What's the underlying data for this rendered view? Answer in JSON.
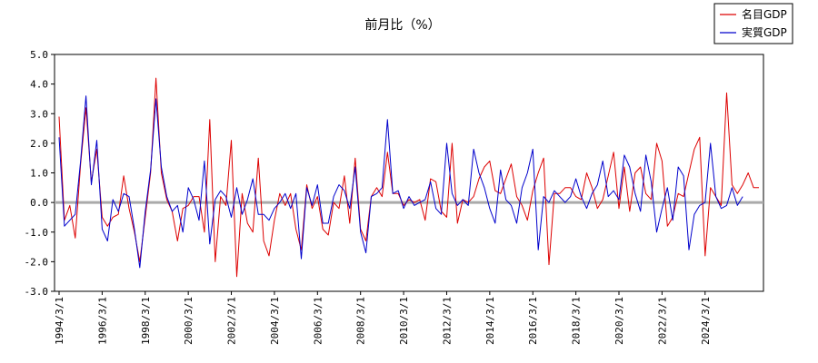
{
  "chart_data": {
    "type": "line",
    "title": "前月比（%）",
    "xlabel": "",
    "ylabel": "",
    "ylim": [
      -3.0,
      5.0
    ],
    "yticks": [
      "5.0",
      "4.0",
      "3.0",
      "2.0",
      "1.0",
      "0.0",
      "-1.0",
      "-2.0",
      "-3.0"
    ],
    "xticks": [
      "1994/3/1",
      "1996/3/1",
      "1998/3/1",
      "2000/3/1",
      "2002/3/1",
      "2004/3/1",
      "2006/3/1",
      "2008/3/1",
      "2010/3/1",
      "2012/3/1",
      "2014/3/1",
      "2016/3/1",
      "2018/3/1",
      "2020/3/1",
      "2022/3/1",
      "2024/3/1"
    ],
    "x_start": "1994/3/1",
    "x_step_months": 3,
    "grid": false,
    "legend_position": "top-right",
    "zero_line": true,
    "series": [
      {
        "name": "名目GDP",
        "color": "#dd0000",
        "values": [
          2.9,
          -0.6,
          -0.1,
          -1.2,
          1.3,
          3.2,
          0.7,
          1.8,
          -0.5,
          -0.8,
          -0.5,
          -0.4,
          0.9,
          -0.2,
          -1.0,
          -2.0,
          -0.5,
          1.0,
          4.2,
          1.0,
          0.1,
          -0.3,
          -1.3,
          -0.2,
          -0.1,
          0.2,
          0.2,
          -1.0,
          2.8,
          -2.0,
          0.2,
          -0.1,
          2.1,
          -2.5,
          0.3,
          -0.7,
          -1.0,
          1.5,
          -1.3,
          -1.8,
          -0.6,
          0.3,
          -0.1,
          0.3,
          -0.9,
          -1.6,
          0.6,
          -0.2,
          0.2,
          -0.9,
          -1.1,
          0.0,
          -0.2,
          0.9,
          -0.7,
          1.5,
          -0.9,
          -1.3,
          0.2,
          0.5,
          0.2,
          1.7,
          0.3,
          0.3,
          -0.1,
          0.1,
          0.0,
          0.1,
          -0.6,
          0.8,
          0.7,
          -0.3,
          -0.5,
          2.0,
          -0.7,
          0.1,
          0.0,
          0.2,
          0.8,
          1.2,
          1.4,
          0.4,
          0.3,
          0.8,
          1.3,
          0.2,
          -0.1,
          -0.6,
          0.4,
          1.0,
          1.5,
          -2.1,
          0.3,
          0.3,
          0.5,
          0.5,
          0.2,
          0.1,
          1.0,
          0.5,
          -0.2,
          0.1,
          0.9,
          1.7,
          -0.2,
          1.2,
          -0.3,
          1.0,
          1.2,
          0.3,
          0.1,
          2.0,
          1.4,
          -0.8,
          -0.5,
          0.3,
          0.2,
          1.0,
          1.8,
          2.2,
          -1.8,
          0.5,
          0.2,
          -0.1,
          3.7,
          0.6,
          0.3,
          0.6,
          1.0,
          0.5,
          0.5
        ]
      },
      {
        "name": "実質GDP",
        "color": "#0000cc",
        "values": [
          2.2,
          -0.8,
          -0.6,
          -0.4,
          1.4,
          3.6,
          0.6,
          2.1,
          -0.9,
          -1.3,
          0.1,
          -0.3,
          0.3,
          0.2,
          -0.9,
          -2.2,
          -0.3,
          1.1,
          3.5,
          1.2,
          0.2,
          -0.3,
          -0.1,
          -1.0,
          0.5,
          0.1,
          -0.6,
          1.4,
          -1.4,
          0.1,
          0.4,
          0.2,
          -0.5,
          0.5,
          -0.4,
          0.1,
          0.8,
          -0.4,
          -0.4,
          -0.6,
          -0.2,
          0.0,
          0.3,
          -0.2,
          0.3,
          -1.9,
          0.5,
          -0.1,
          0.6,
          -0.7,
          -0.7,
          0.2,
          0.6,
          0.4,
          -0.2,
          1.2,
          -1.0,
          -1.7,
          0.2,
          0.3,
          0.5,
          2.8,
          0.3,
          0.4,
          -0.2,
          0.2,
          -0.1,
          0.0,
          0.1,
          0.7,
          -0.2,
          -0.4,
          2.0,
          0.3,
          -0.1,
          0.1,
          -0.1,
          1.8,
          1.0,
          0.5,
          -0.2,
          -0.7,
          1.1,
          0.1,
          -0.1,
          -0.7,
          0.5,
          1.0,
          1.8,
          -1.6,
          0.2,
          0.0,
          0.4,
          0.2,
          0.0,
          0.2,
          0.8,
          0.2,
          -0.2,
          0.3,
          0.6,
          1.4,
          0.2,
          0.4,
          0.1,
          1.6,
          1.2,
          0.3,
          -0.3,
          1.6,
          0.7,
          -1.0,
          -0.2,
          0.5,
          -0.6,
          1.2,
          0.9,
          -1.6,
          -0.4,
          -0.1,
          0.0,
          2.0,
          0.2,
          -0.2,
          -0.1,
          0.5,
          -0.1,
          0.2
        ]
      }
    ]
  }
}
